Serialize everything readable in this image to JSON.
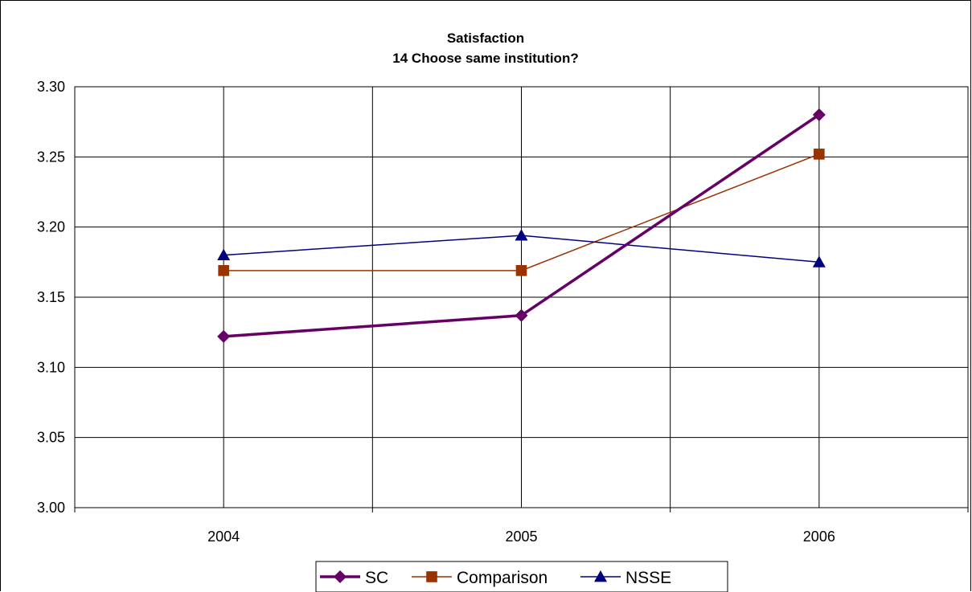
{
  "chart_data": {
    "type": "line",
    "title_lines": [
      "Satisfaction",
      "14 Choose same institution?"
    ],
    "categories": [
      "2004",
      "2005",
      "2006"
    ],
    "ylim": [
      3.0,
      3.3
    ],
    "ytick_labels": [
      "3.00",
      "3.05",
      "3.10",
      "3.15",
      "3.20",
      "3.25",
      "3.30"
    ],
    "yticks": [
      3.0,
      3.05,
      3.1,
      3.15,
      3.2,
      3.25,
      3.3
    ],
    "grid": true,
    "legend_position": "bottom",
    "series": [
      {
        "name": "SC",
        "values": [
          3.122,
          3.137,
          3.28
        ],
        "color": "#660066",
        "marker": "diamond",
        "line_style": "thick"
      },
      {
        "name": "Comparison",
        "values": [
          3.169,
          3.169,
          3.252
        ],
        "color": "#993300",
        "marker": "square",
        "line_style": "thin"
      },
      {
        "name": "NSSE",
        "values": [
          3.18,
          3.194,
          3.175
        ],
        "color": "#000080",
        "marker": "triangle",
        "line_style": "thin"
      }
    ]
  }
}
